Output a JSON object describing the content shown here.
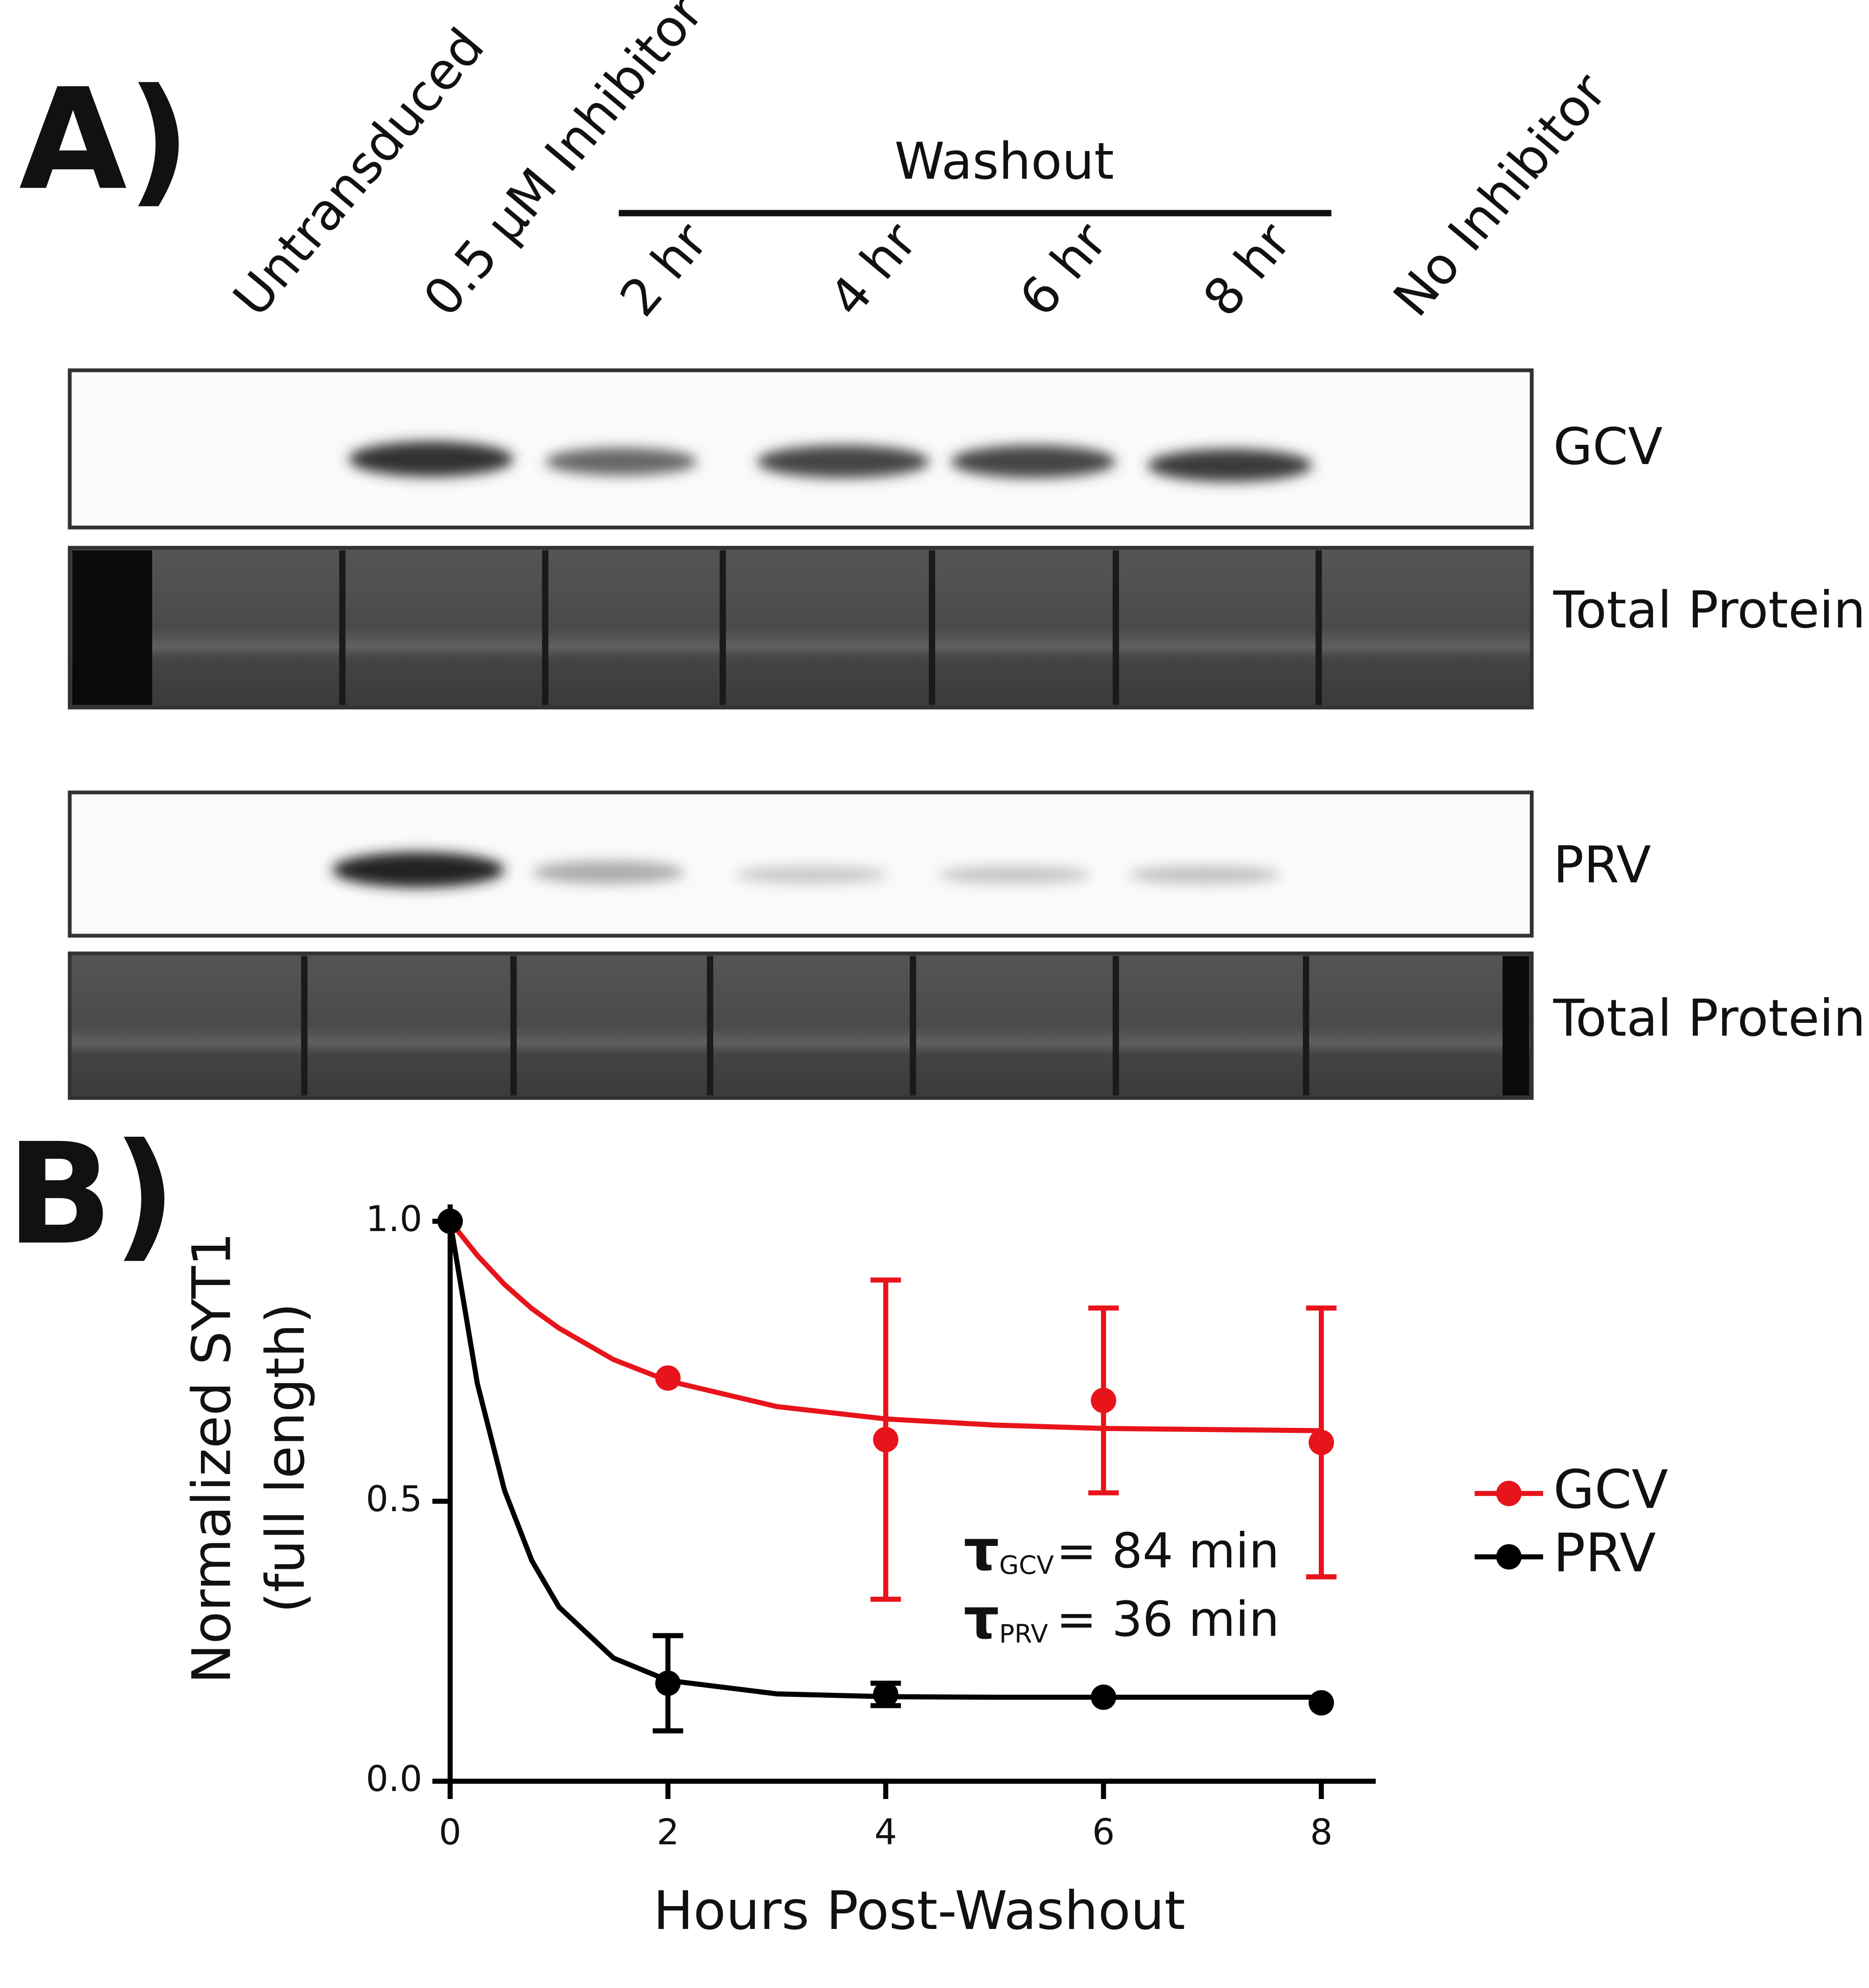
{
  "panel_a": {
    "label": "A)",
    "lanes": [
      "Untransduced",
      "0.5 µM Inhibitor",
      "2 hr",
      "4 hr",
      "6 hr",
      "8 hr",
      "No Inhibitor"
    ],
    "washout": "Washout",
    "blots": [
      "GCV",
      "Total Protein",
      "PRV",
      "Total Protein"
    ]
  },
  "chart_data": {
    "type": "scatter",
    "panel_label": "B)",
    "ylabel": [
      "Normalized SYT1",
      "(full length)"
    ],
    "xlabel": "Hours Post-Washout",
    "xlim": [
      0,
      8.5
    ],
    "xticks": [
      0,
      2,
      4,
      6,
      8
    ],
    "ylim": [
      0,
      1.03
    ],
    "yticks": [
      {
        "value": 0,
        "label": "0.0"
      },
      0.5,
      {
        "value": 1,
        "label": "1.0"
      }
    ],
    "x": [
      0,
      2,
      4,
      6,
      8
    ],
    "series": [
      {
        "name": "GCV",
        "color": "#e8141b",
        "values": [
          1.0,
          0.72,
          0.61,
          0.68,
          0.605
        ],
        "errors": [
          null,
          null,
          0.285,
          0.165,
          0.24
        ],
        "fit": {
          "x": [
            0,
            0.25,
            0.5,
            0.75,
            1,
            1.5,
            2,
            3,
            4,
            5,
            6,
            7,
            8
          ],
          "values": [
            1.0,
            0.939,
            0.887,
            0.844,
            0.809,
            0.753,
            0.715,
            0.669,
            0.647,
            0.636,
            0.63,
            0.628,
            0.626
          ]
        }
      },
      {
        "name": "PRV",
        "color": "#000000",
        "values": [
          1.0,
          0.175,
          0.155,
          0.15,
          0.14
        ],
        "errors": [
          null,
          0.085,
          0.02,
          null,
          null
        ],
        "fit": {
          "x": [
            0,
            0.25,
            0.5,
            0.75,
            1,
            1.5,
            2,
            3,
            4,
            5,
            6,
            7,
            8
          ],
          "values": [
            1.0,
            0.71,
            0.519,
            0.394,
            0.311,
            0.22,
            0.18,
            0.156,
            0.151,
            0.15,
            0.15,
            0.15,
            0.15
          ]
        }
      }
    ],
    "annotations": [
      {
        "symbol": "τ",
        "subscript": "GCV",
        "text": "= 84 min"
      },
      {
        "symbol": "τ",
        "subscript": "PRV",
        "text": "= 36 min"
      }
    ]
  }
}
